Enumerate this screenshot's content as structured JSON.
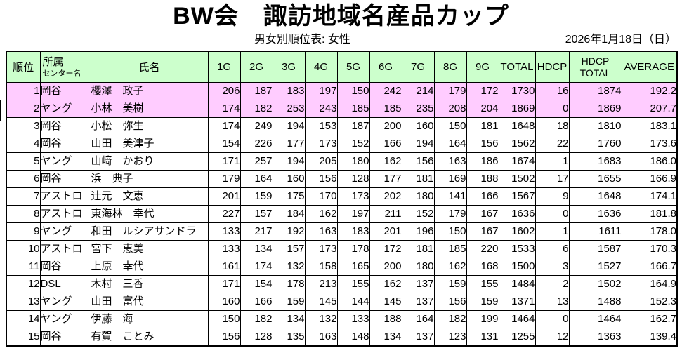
{
  "title": "BW会　諏訪地域名産品カップ",
  "subtitle": "男女別順位表: 女性",
  "date": "2026年1月18日（日）",
  "colors": {
    "header_bg": "#ccffcc",
    "highlight_bg": "#ffccff",
    "row_bg": "#ffffff",
    "border": "#000000"
  },
  "table": {
    "headers": {
      "rank": "順位",
      "center_line1": "所属",
      "center_line2": "センター名",
      "name": "氏名",
      "games": [
        "1G",
        "2G",
        "3G",
        "4G",
        "5G",
        "6G",
        "7G",
        "8G",
        "9G"
      ],
      "total": "TOTAL",
      "hdcp": "HDCP",
      "hdcp_total_line1": "HDCP",
      "hdcp_total_line2": "TOTAL",
      "average": "AVERAGE"
    },
    "rows": [
      {
        "rank": 1,
        "center": "岡谷",
        "name": "櫻澤　政子",
        "games": [
          206,
          187,
          183,
          197,
          150,
          242,
          214,
          179,
          172
        ],
        "total": 1730,
        "hdcp": 16,
        "hdcp_total": 1874,
        "average": "192.2",
        "highlight": true
      },
      {
        "rank": 2,
        "center": "ヤング",
        "name": "小林　美樹",
        "games": [
          174,
          182,
          253,
          243,
          185,
          185,
          235,
          208,
          204
        ],
        "total": 1869,
        "hdcp": 0,
        "hdcp_total": 1869,
        "average": "207.7",
        "highlight": true
      },
      {
        "rank": 3,
        "center": "岡谷",
        "name": "小松　弥生",
        "games": [
          174,
          249,
          194,
          153,
          187,
          200,
          160,
          150,
          181
        ],
        "total": 1648,
        "hdcp": 18,
        "hdcp_total": 1810,
        "average": "183.1",
        "highlight": false
      },
      {
        "rank": 4,
        "center": "岡谷",
        "name": "山田　美津子",
        "games": [
          154,
          226,
          177,
          173,
          152,
          166,
          194,
          164,
          156
        ],
        "total": 1562,
        "hdcp": 22,
        "hdcp_total": 1760,
        "average": "173.6",
        "highlight": false
      },
      {
        "rank": 5,
        "center": "ヤング",
        "name": "山﨑　かおり",
        "games": [
          171,
          257,
          194,
          205,
          180,
          162,
          156,
          163,
          186
        ],
        "total": 1674,
        "hdcp": 1,
        "hdcp_total": 1683,
        "average": "186.0",
        "highlight": false
      },
      {
        "rank": 6,
        "center": "岡谷",
        "name": "浜　典子",
        "games": [
          179,
          164,
          160,
          156,
          128,
          177,
          181,
          169,
          188
        ],
        "total": 1502,
        "hdcp": 17,
        "hdcp_total": 1655,
        "average": "166.9",
        "highlight": false
      },
      {
        "rank": 7,
        "center": "アストロ",
        "name": "辻元　文恵",
        "games": [
          201,
          159,
          175,
          170,
          173,
          202,
          180,
          141,
          166
        ],
        "total": 1567,
        "hdcp": 9,
        "hdcp_total": 1648,
        "average": "174.1",
        "highlight": false
      },
      {
        "rank": 8,
        "center": "アストロ",
        "name": "東海林　幸代",
        "games": [
          227,
          157,
          184,
          162,
          197,
          211,
          152,
          179,
          167
        ],
        "total": 1636,
        "hdcp": 0,
        "hdcp_total": 1636,
        "average": "181.8",
        "highlight": false
      },
      {
        "rank": 9,
        "center": "ヤング",
        "name": "和田　ルシアサンドラ",
        "games": [
          133,
          217,
          192,
          163,
          183,
          201,
          196,
          150,
          167
        ],
        "total": 1602,
        "hdcp": 1,
        "hdcp_total": 1611,
        "average": "178.0",
        "highlight": false
      },
      {
        "rank": 10,
        "center": "アストロ",
        "name": "宮下　恵美",
        "games": [
          133,
          134,
          157,
          173,
          178,
          172,
          181,
          185,
          220
        ],
        "total": 1533,
        "hdcp": 6,
        "hdcp_total": 1587,
        "average": "170.3",
        "highlight": false
      },
      {
        "rank": 11,
        "center": "岡谷",
        "name": "上原　幸代",
        "games": [
          161,
          174,
          132,
          158,
          165,
          200,
          180,
          162,
          168
        ],
        "total": 1500,
        "hdcp": 3,
        "hdcp_total": 1527,
        "average": "166.7",
        "highlight": false
      },
      {
        "rank": 12,
        "center": "DSL",
        "name": "木村　三香",
        "games": [
          171,
          154,
          178,
          213,
          155,
          162,
          137,
          159,
          155
        ],
        "total": 1484,
        "hdcp": 2,
        "hdcp_total": 1502,
        "average": "164.9",
        "highlight": false
      },
      {
        "rank": 13,
        "center": "ヤング",
        "name": "山田　富代",
        "games": [
          160,
          166,
          159,
          145,
          144,
          145,
          137,
          156,
          159
        ],
        "total": 1371,
        "hdcp": 13,
        "hdcp_total": 1488,
        "average": "152.3",
        "highlight": false
      },
      {
        "rank": 14,
        "center": "ヤング",
        "name": "伊藤　海",
        "games": [
          150,
          182,
          134,
          132,
          133,
          188,
          164,
          182,
          199
        ],
        "total": 1464,
        "hdcp": 0,
        "hdcp_total": 1464,
        "average": "162.7",
        "highlight": false
      },
      {
        "rank": 15,
        "center": "岡谷",
        "name": "有賀　ことみ",
        "games": [
          156,
          128,
          135,
          163,
          148,
          134,
          137,
          123,
          131
        ],
        "total": 1255,
        "hdcp": 12,
        "hdcp_total": 1363,
        "average": "139.4",
        "highlight": false
      }
    ]
  }
}
